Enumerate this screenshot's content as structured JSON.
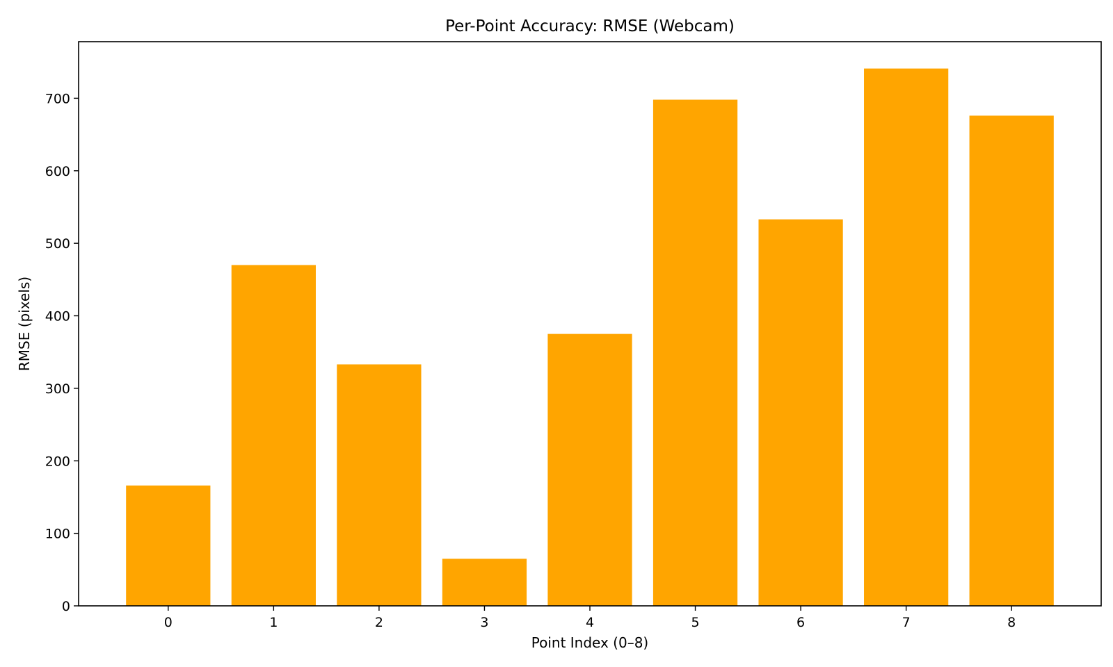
{
  "chart_data": {
    "type": "bar",
    "title": "Per-Point Accuracy: RMSE (Webcam)",
    "xlabel": "Point Index (0–8)",
    "ylabel": "RMSE (pixels)",
    "categories": [
      "0",
      "1",
      "2",
      "3",
      "4",
      "5",
      "6",
      "7",
      "8"
    ],
    "values": [
      166,
      470,
      333,
      65,
      375,
      698,
      533,
      741,
      676
    ],
    "ylim": [
      0,
      778
    ],
    "yticks": [
      0,
      100,
      200,
      300,
      400,
      500,
      600,
      700
    ],
    "bar_color": "#FFA500",
    "grid": false,
    "legend": "none"
  }
}
